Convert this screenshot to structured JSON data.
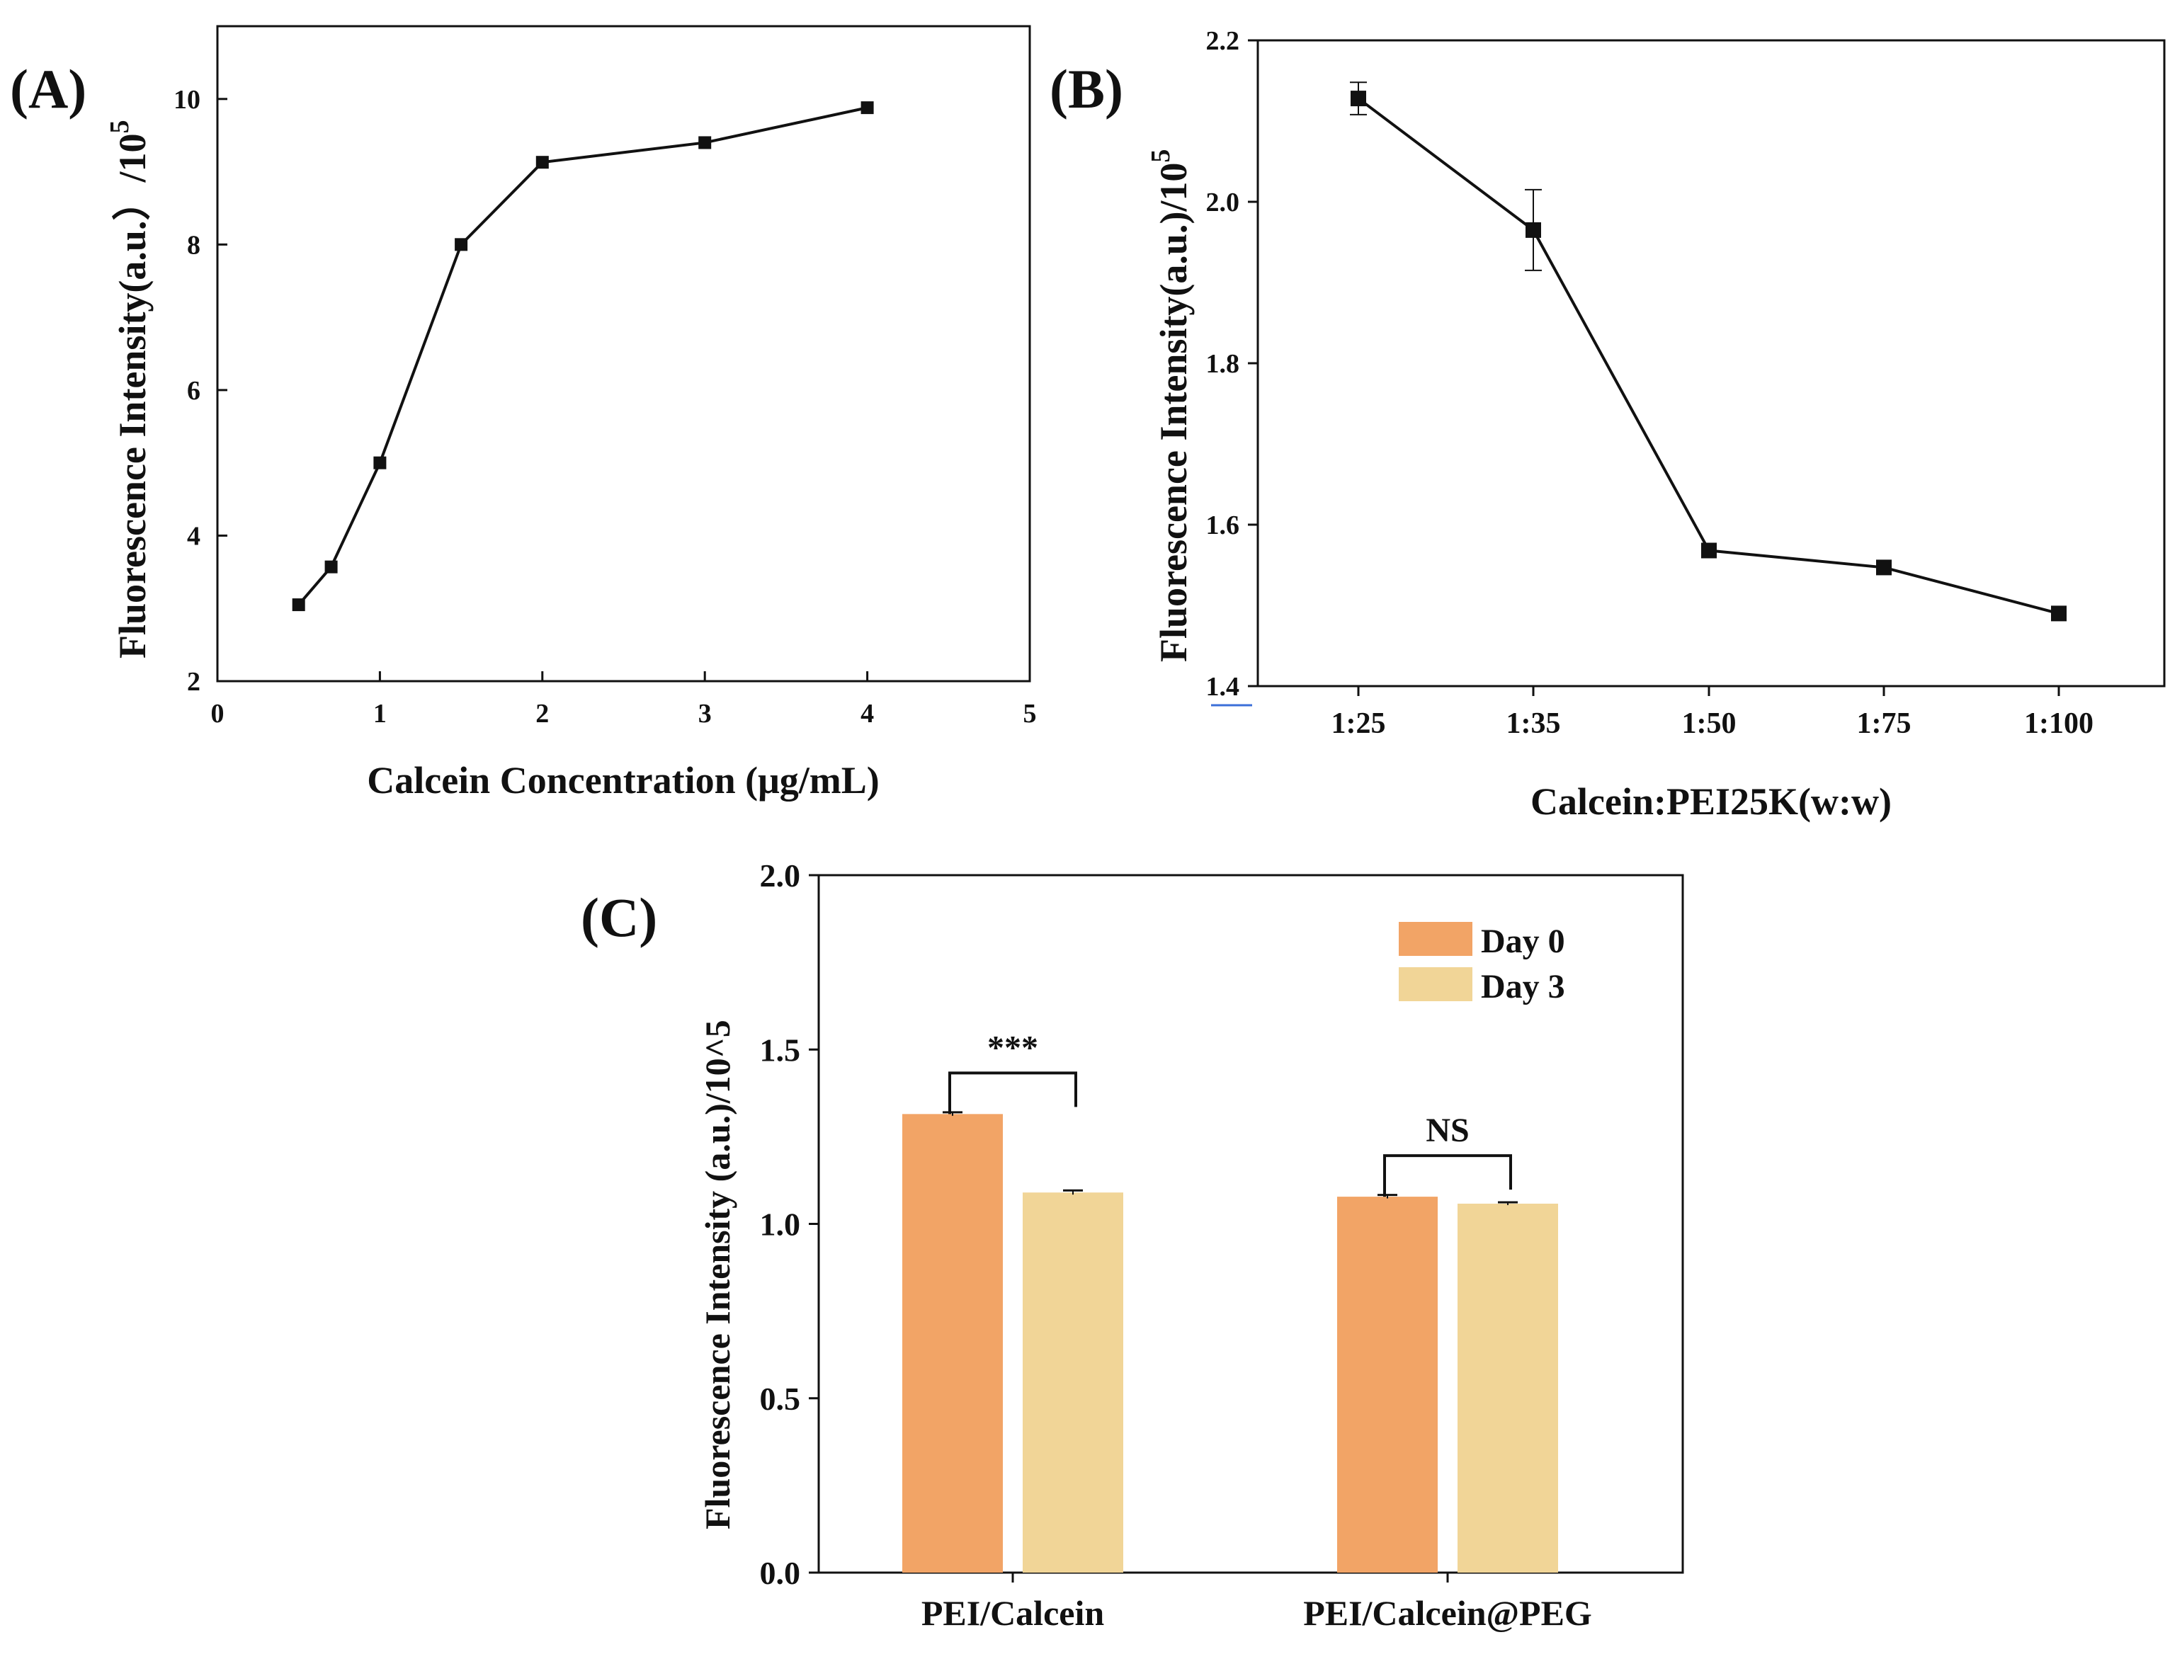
{
  "colors": {
    "ink": "#111111",
    "day0": "#f2a466",
    "day3": "#f1d597"
  },
  "chart_data": [
    {
      "id": "A",
      "panel_label": "(A)",
      "type": "line",
      "xlabel": "Calcein Concentration (μg/mL)",
      "ylabel": "Fluorescence Intensity(a.u.）/10",
      "ylabel_sup": "5",
      "xlim": [
        0,
        5
      ],
      "ylim": [
        2,
        11
      ],
      "xticks": [
        0,
        1,
        2,
        3,
        4,
        5
      ],
      "yticks": [
        2,
        4,
        6,
        8,
        10
      ],
      "x": [
        0.5,
        0.7,
        1.0,
        1.5,
        2.0,
        3.0,
        4.0
      ],
      "y": [
        3.05,
        3.57,
        5.0,
        8.0,
        9.13,
        9.4,
        9.88
      ]
    },
    {
      "id": "B",
      "panel_label": "(B)",
      "type": "line",
      "xlabel": "Calcein:PEI25K(w:w)",
      "ylabel": "Fluorescence Intensity(a.u.)/10",
      "ylabel_sup": "5",
      "categories": [
        "1:25",
        "1:35",
        "1:50",
        "1:75",
        "1:100"
      ],
      "ylim": [
        1.4,
        2.2
      ],
      "yticks": [
        "1.4",
        "1.6",
        "1.8",
        "2.0",
        "2.2"
      ],
      "values": [
        2.128,
        1.965,
        1.568,
        1.547,
        1.49
      ],
      "errors": [
        0.02,
        0.05,
        0.0,
        0.0,
        0.0
      ]
    },
    {
      "id": "C",
      "panel_label": "(C)",
      "type": "bar",
      "xlabel": "",
      "ylabel": "Fluorescence Intensity (a.u.)/10^5",
      "categories": [
        "PEI/Calcein",
        "PEI/Calcein@PEG"
      ],
      "ylim": [
        0,
        2.0
      ],
      "yticks": [
        "0.0",
        "0.5",
        "1.0",
        "1.5",
        "2.0"
      ],
      "series": [
        {
          "name": "Day 0",
          "values": [
            1.315,
            1.078
          ],
          "errors": [
            0.005,
            0.005
          ]
        },
        {
          "name": "Day 3",
          "values": [
            1.09,
            1.058
          ],
          "errors": [
            0.006,
            0.004
          ]
        }
      ],
      "significance": [
        "***",
        "NS"
      ],
      "legend_position": "top-right"
    }
  ]
}
